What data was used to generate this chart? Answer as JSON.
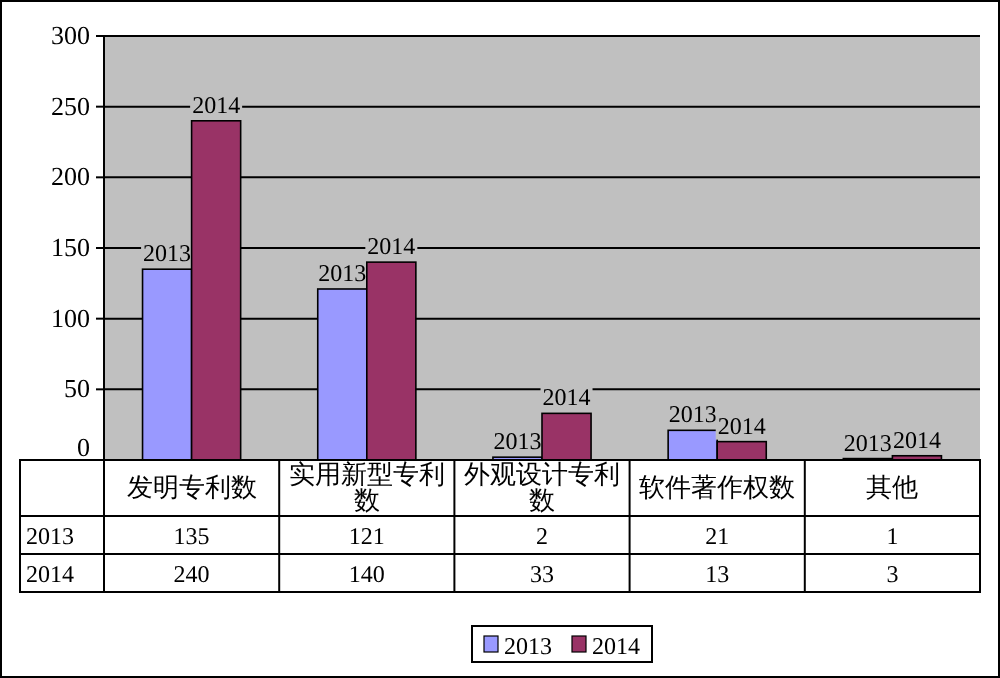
{
  "chart_data": {
    "type": "bar",
    "categories": [
      "发明专利数",
      "实用新型专利数",
      "外观设计专利数",
      "软件著作权数",
      "其他"
    ],
    "series": [
      {
        "name": "2013",
        "color": "#9999ff",
        "values": [
          135,
          121,
          2,
          21,
          1
        ]
      },
      {
        "name": "2014",
        "color": "#993366",
        "values": [
          240,
          140,
          33,
          13,
          3
        ]
      }
    ],
    "ylim": [
      0,
      300
    ],
    "yticks": [
      0,
      50,
      100,
      150,
      200,
      250,
      300
    ],
    "grid": "y",
    "legend": "bottom",
    "data_labels": true
  }
}
